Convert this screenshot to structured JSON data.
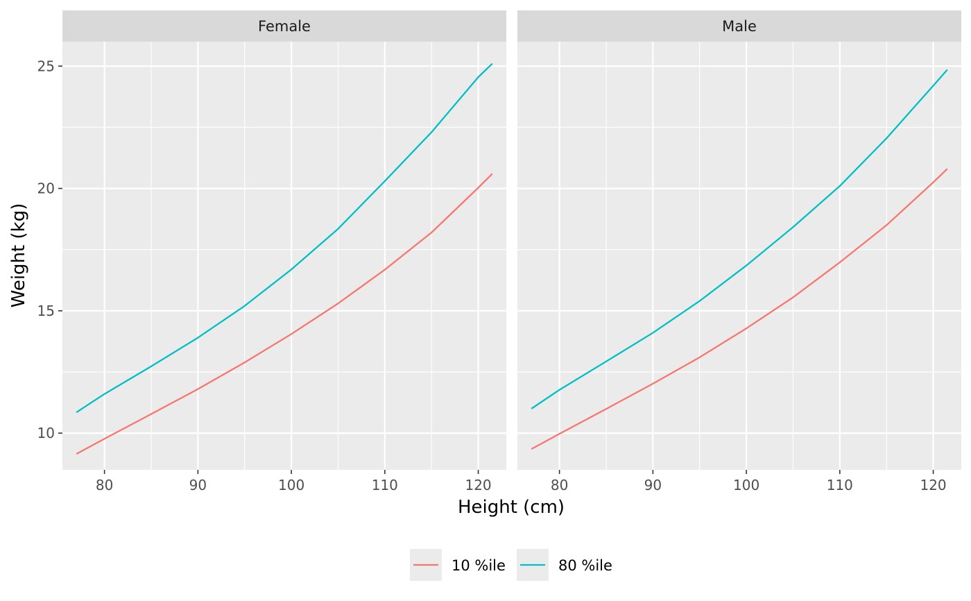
{
  "chart_data": {
    "type": "line",
    "xlabel": "Height (cm)",
    "ylabel": "Weight (kg)",
    "xlim": [
      75.5,
      123
    ],
    "ylim": [
      8.5,
      26
    ],
    "xticks": [
      80,
      90,
      100,
      110,
      120
    ],
    "yticks": [
      10,
      15,
      20,
      25
    ],
    "grid": true,
    "legend_position": "bottom",
    "colors": {
      "10 %ile": "#F8766D",
      "80 %ile": "#00BFC4"
    },
    "legend": [
      "10 %ile",
      "80 %ile"
    ],
    "facets": [
      {
        "label": "Female",
        "series": [
          {
            "name": "10 %ile",
            "x": [
              77,
              80,
              85,
              90,
              95,
              100,
              105,
              110,
              115,
              120,
              121.5
            ],
            "y": [
              9.15,
              9.77,
              10.78,
              11.8,
              12.89,
              14.05,
              15.3,
              16.68,
              18.2,
              20.03,
              20.6
            ]
          },
          {
            "name": "80 %ile",
            "x": [
              77,
              80,
              85,
              90,
              95,
              100,
              105,
              110,
              115,
              120,
              121.5
            ],
            "y": [
              10.85,
              11.6,
              12.73,
              13.9,
              15.2,
              16.69,
              18.35,
              20.3,
              22.3,
              24.55,
              25.1
            ]
          }
        ]
      },
      {
        "label": "Male",
        "series": [
          {
            "name": "10 %ile",
            "x": [
              77,
              80,
              85,
              90,
              95,
              100,
              105,
              110,
              115,
              120,
              121.5
            ],
            "y": [
              9.35,
              9.97,
              10.99,
              12.02,
              13.1,
              14.28,
              15.55,
              16.98,
              18.5,
              20.25,
              20.8
            ]
          },
          {
            "name": "80 %ile",
            "x": [
              77,
              80,
              85,
              90,
              95,
              100,
              105,
              110,
              115,
              120,
              121.5
            ],
            "y": [
              11.0,
              11.77,
              12.93,
              14.1,
              15.4,
              16.85,
              18.42,
              20.1,
              22.05,
              24.2,
              24.85
            ]
          }
        ]
      }
    ]
  }
}
